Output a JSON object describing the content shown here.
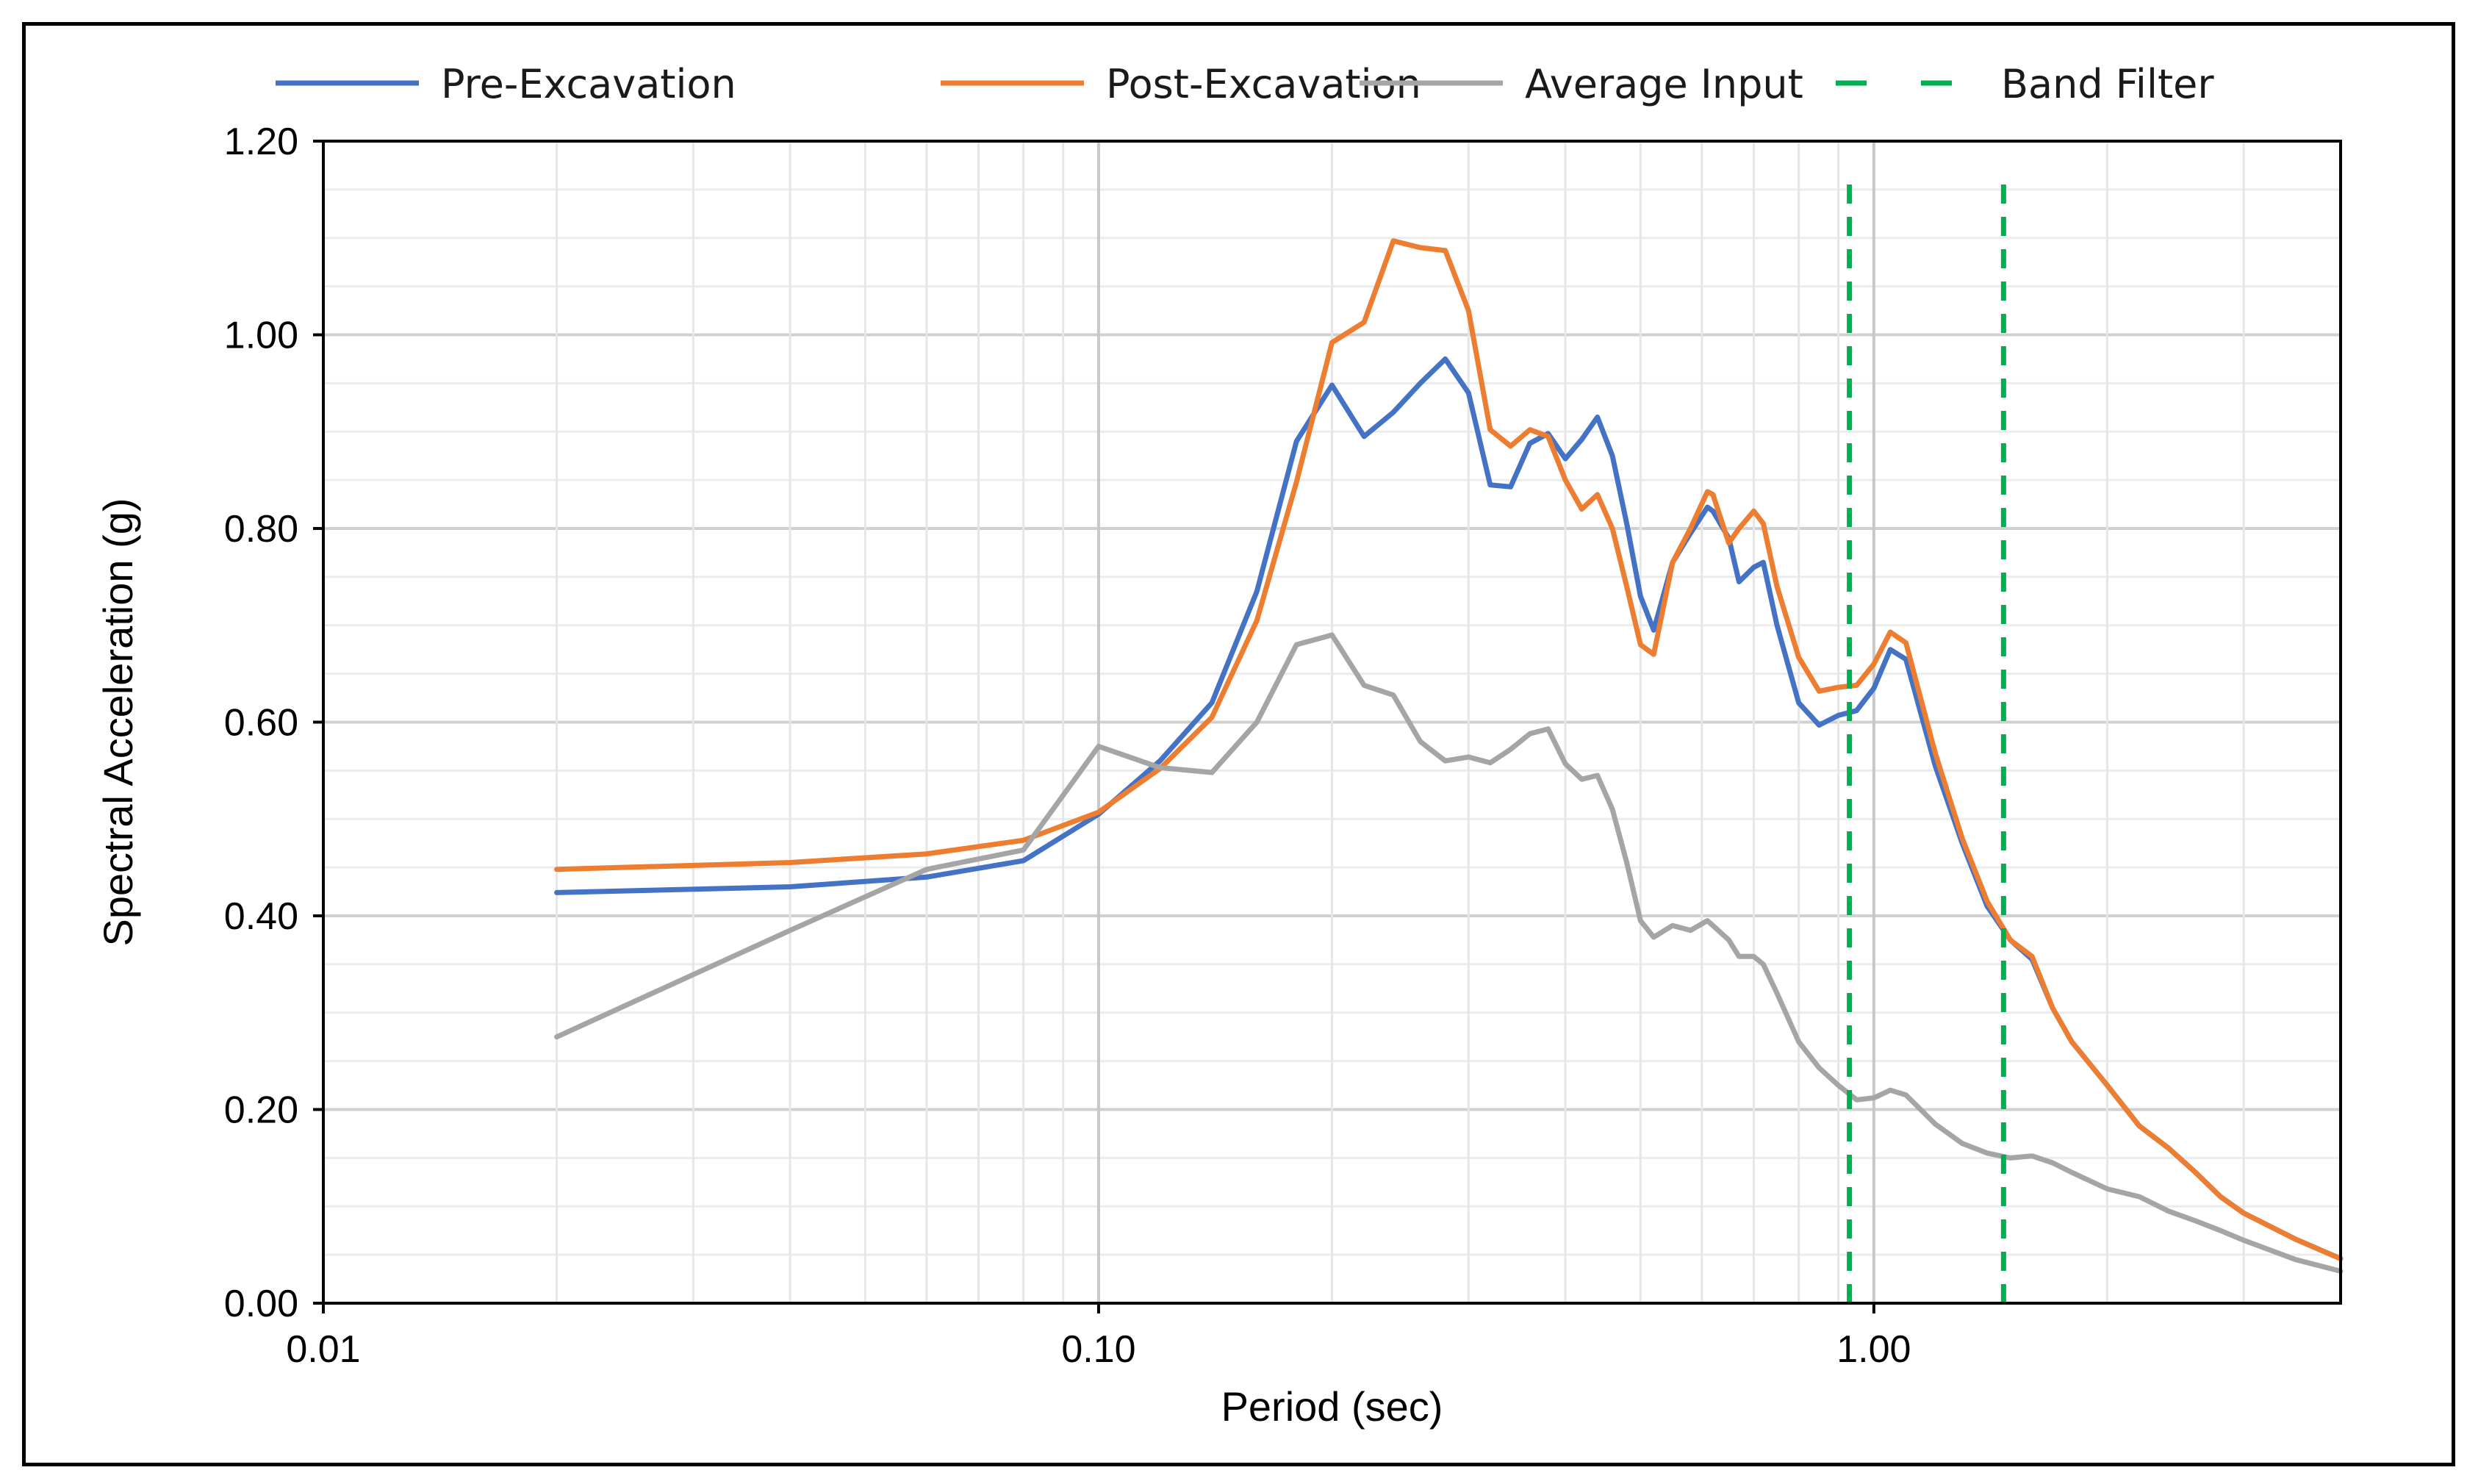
{
  "chart_data": {
    "type": "line",
    "title": "",
    "xlabel": "Period (sec)",
    "ylabel": "Spectral Acceleration (g)",
    "xscale": "log",
    "xlim": [
      0.01,
      4.0
    ],
    "ylim": [
      0,
      1.2
    ],
    "yticks": [
      0,
      0.2,
      0.4,
      0.6,
      0.8,
      1.0,
      1.2
    ],
    "ytick_labels": [
      "0.00",
      "0.20",
      "0.40",
      "0.60",
      "0.80",
      "1.00",
      "1.20"
    ],
    "xticks": [
      0.01,
      0.1,
      1.0
    ],
    "xtick_labels": [
      "0.01",
      "0.10",
      "1.00"
    ],
    "grid": true,
    "legend_position": "top",
    "series": [
      {
        "name": "Pre-Excavation",
        "color": "#4472C4",
        "style": "solid",
        "x": [
          0.02,
          0.04,
          0.06,
          0.08,
          0.1,
          0.12,
          0.14,
          0.16,
          0.18,
          0.2,
          0.22,
          0.24,
          0.26,
          0.28,
          0.3,
          0.32,
          0.34,
          0.36,
          0.38,
          0.4,
          0.42,
          0.44,
          0.46,
          0.48,
          0.5,
          0.52,
          0.55,
          0.58,
          0.61,
          0.62,
          0.65,
          0.67,
          0.7,
          0.72,
          0.75,
          0.8,
          0.85,
          0.9,
          0.95,
          1.0,
          1.05,
          1.1,
          1.2,
          1.3,
          1.4,
          1.5,
          1.6,
          1.7,
          1.8,
          2.0,
          2.2,
          2.4,
          2.6,
          2.8,
          3.0,
          3.5,
          4.0
        ],
        "y": [
          0.424,
          0.43,
          0.44,
          0.457,
          0.505,
          0.56,
          0.62,
          0.735,
          0.89,
          0.948,
          0.895,
          0.92,
          0.95,
          0.975,
          0.94,
          0.845,
          0.843,
          0.888,
          0.898,
          0.872,
          0.892,
          0.915,
          0.875,
          0.805,
          0.73,
          0.695,
          0.765,
          0.795,
          0.822,
          0.818,
          0.79,
          0.745,
          0.76,
          0.765,
          0.7,
          0.62,
          0.597,
          0.607,
          0.612,
          0.635,
          0.675,
          0.665,
          0.555,
          0.475,
          0.41,
          0.375,
          0.355,
          0.305,
          0.27,
          0.225,
          0.183,
          0.16,
          0.135,
          0.11,
          0.093,
          0.066,
          0.046
        ]
      },
      {
        "name": "Post-Excavation",
        "color": "#ED7D31",
        "style": "solid",
        "x": [
          0.02,
          0.04,
          0.06,
          0.08,
          0.1,
          0.12,
          0.14,
          0.16,
          0.18,
          0.2,
          0.22,
          0.24,
          0.26,
          0.28,
          0.3,
          0.32,
          0.34,
          0.36,
          0.38,
          0.4,
          0.42,
          0.44,
          0.46,
          0.48,
          0.5,
          0.52,
          0.55,
          0.58,
          0.61,
          0.62,
          0.65,
          0.67,
          0.7,
          0.72,
          0.75,
          0.8,
          0.85,
          0.9,
          0.95,
          1.0,
          1.05,
          1.1,
          1.2,
          1.3,
          1.4,
          1.5,
          1.6,
          1.7,
          1.8,
          2.0,
          2.2,
          2.4,
          2.6,
          2.8,
          3.0,
          3.5,
          4.0
        ],
        "y": [
          0.448,
          0.455,
          0.464,
          0.478,
          0.507,
          0.552,
          0.605,
          0.705,
          0.848,
          0.992,
          1.013,
          1.097,
          1.09,
          1.087,
          1.025,
          0.902,
          0.885,
          0.902,
          0.895,
          0.85,
          0.82,
          0.835,
          0.8,
          0.74,
          0.68,
          0.67,
          0.765,
          0.8,
          0.838,
          0.835,
          0.785,
          0.8,
          0.818,
          0.805,
          0.74,
          0.667,
          0.632,
          0.636,
          0.638,
          0.66,
          0.693,
          0.682,
          0.568,
          0.48,
          0.415,
          0.375,
          0.358,
          0.305,
          0.27,
          0.225,
          0.183,
          0.16,
          0.135,
          0.11,
          0.093,
          0.066,
          0.046
        ]
      },
      {
        "name": "Average Input",
        "color": "#A5A5A5",
        "style": "solid",
        "x": [
          0.02,
          0.04,
          0.06,
          0.08,
          0.1,
          0.12,
          0.14,
          0.16,
          0.18,
          0.2,
          0.22,
          0.24,
          0.26,
          0.28,
          0.3,
          0.32,
          0.34,
          0.36,
          0.38,
          0.4,
          0.42,
          0.44,
          0.46,
          0.48,
          0.5,
          0.52,
          0.55,
          0.58,
          0.61,
          0.62,
          0.65,
          0.67,
          0.7,
          0.72,
          0.75,
          0.8,
          0.85,
          0.9,
          0.95,
          1.0,
          1.05,
          1.1,
          1.2,
          1.3,
          1.4,
          1.5,
          1.6,
          1.7,
          1.8,
          2.0,
          2.2,
          2.4,
          2.6,
          2.8,
          3.0,
          3.5,
          4.0
        ],
        "y": [
          0.275,
          0.385,
          0.448,
          0.468,
          0.575,
          0.553,
          0.548,
          0.6,
          0.68,
          0.69,
          0.638,
          0.628,
          0.58,
          0.56,
          0.564,
          0.558,
          0.572,
          0.588,
          0.593,
          0.557,
          0.541,
          0.545,
          0.51,
          0.455,
          0.395,
          0.378,
          0.39,
          0.385,
          0.395,
          0.39,
          0.375,
          0.358,
          0.358,
          0.35,
          0.32,
          0.27,
          0.243,
          0.225,
          0.21,
          0.212,
          0.22,
          0.215,
          0.185,
          0.165,
          0.155,
          0.15,
          0.152,
          0.145,
          0.135,
          0.118,
          0.11,
          0.095,
          0.085,
          0.075,
          0.065,
          0.045,
          0.033
        ]
      },
      {
        "name": "Band Filter",
        "color": "#00B050",
        "style": "dashed",
        "lines": [
          {
            "x": [
              0.93,
              0.93
            ],
            "y": [
              0.0,
              1.16
            ]
          },
          {
            "x": [
              1.47,
              1.47
            ],
            "y": [
              0.0,
              1.16
            ]
          }
        ]
      }
    ]
  }
}
